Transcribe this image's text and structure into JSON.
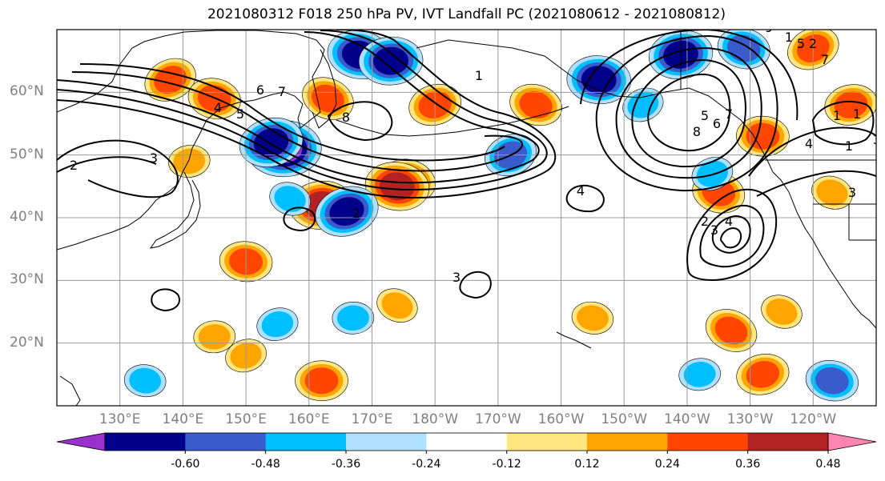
{
  "title": "2021080312 F018 250 hPa PV, IVT Landfall PC (2021080612 - 2021080812)",
  "map": {
    "projection": "cylindrical",
    "lon_range": [
      120,
      250
    ],
    "lat_range": [
      10,
      70
    ],
    "lat_ticks": [
      "20°N",
      "30°N",
      "40°N",
      "50°N",
      "60°N"
    ],
    "lon_ticks": [
      "130°E",
      "140°E",
      "150°E",
      "160°E",
      "170°E",
      "180°W",
      "170°W",
      "160°W",
      "150°W",
      "140°W",
      "130°W",
      "120°W"
    ],
    "grid": true
  },
  "colorbar": {
    "colors": [
      "#9932cc",
      "#00008b",
      "#3a5bcc",
      "#00bfff",
      "#b0e0ff",
      "#ffffff",
      "#ffe680",
      "#ffa500",
      "#ff4500",
      "#b22222",
      "#ff85b0"
    ],
    "tick_labels": [
      "-0.60",
      "-0.48",
      "-0.36",
      "-0.24",
      "-0.12",
      "0.12",
      "0.24",
      "0.36",
      "0.48",
      "0.60"
    ]
  },
  "contour_labels": [
    "2",
    "3",
    "4",
    "5",
    "6",
    "7",
    "8",
    "1",
    "2",
    "3",
    "4",
    "5",
    "6",
    "7",
    "8",
    "9",
    "1",
    "2",
    "3",
    "4",
    "1",
    "1",
    "5",
    "7",
    "4",
    "3",
    "2",
    "1",
    "3"
  ],
  "chart_data": {
    "type": "heatmap",
    "title": "2021080312 F018 250 hPa PV, IVT Landfall PC (2021080612 - 2021080812)",
    "xlabel": "",
    "ylabel": "",
    "x_range": [
      120,
      250
    ],
    "y_range": [
      10,
      70
    ],
    "color_levels": [
      -0.6,
      -0.48,
      -0.36,
      -0.24,
      -0.12,
      0.12,
      0.24,
      0.36,
      0.48,
      0.6
    ],
    "filled_features": [
      {
        "lon": 138,
        "lat": 62,
        "value": 0.36
      },
      {
        "lon": 145,
        "lat": 59,
        "value": 0.36
      },
      {
        "lon": 156,
        "lat": 51,
        "value": -0.6
      },
      {
        "lon": 154,
        "lat": 52,
        "value": -0.48
      },
      {
        "lon": 163,
        "lat": 59,
        "value": 0.36
      },
      {
        "lon": 168,
        "lat": 66,
        "value": -0.48
      },
      {
        "lon": 173,
        "lat": 65,
        "value": -0.48
      },
      {
        "lon": 180,
        "lat": 58,
        "value": 0.36
      },
      {
        "lon": 176,
        "lat": 46,
        "value": 0.36
      },
      {
        "lon": 174,
        "lat": 45,
        "value": 0.48
      },
      {
        "lon": 162,
        "lat": 42,
        "value": 0.48
      },
      {
        "lon": 166,
        "lat": 41,
        "value": -0.48
      },
      {
        "lon": 157,
        "lat": 43,
        "value": -0.24
      },
      {
        "lon": 150,
        "lat": 33,
        "value": 0.36
      },
      {
        "lon": 141,
        "lat": 49,
        "value": 0.24
      },
      {
        "lon": 192,
        "lat": 50,
        "value": -0.36
      },
      {
        "lon": 196,
        "lat": 58,
        "value": 0.36
      },
      {
        "lon": 206,
        "lat": 62,
        "value": -0.48
      },
      {
        "lon": 219,
        "lat": 66,
        "value": -0.48
      },
      {
        "lon": 213,
        "lat": 58,
        "value": -0.24
      },
      {
        "lon": 225,
        "lat": 44,
        "value": 0.36
      },
      {
        "lon": 232,
        "lat": 53,
        "value": 0.36
      },
      {
        "lon": 246,
        "lat": 58,
        "value": 0.36
      },
      {
        "lon": 240,
        "lat": 67,
        "value": 0.36
      },
      {
        "lon": 229,
        "lat": 67,
        "value": -0.36
      },
      {
        "lon": 162,
        "lat": 14,
        "value": 0.36
      },
      {
        "lon": 232,
        "lat": 15,
        "value": 0.36
      },
      {
        "lon": 227,
        "lat": 22,
        "value": 0.36
      },
      {
        "lon": 243,
        "lat": 14,
        "value": -0.36
      },
      {
        "lon": 167,
        "lat": 24,
        "value": -0.24
      },
      {
        "lon": 155,
        "lat": 23,
        "value": -0.24
      },
      {
        "lon": 174,
        "lat": 26,
        "value": 0.24
      },
      {
        "lon": 205,
        "lat": 24,
        "value": 0.24
      },
      {
        "lon": 145,
        "lat": 21,
        "value": 0.24
      },
      {
        "lon": 150,
        "lat": 18,
        "value": 0.24
      },
      {
        "lon": 235,
        "lat": 25,
        "value": 0.24
      },
      {
        "lon": 134,
        "lat": 14,
        "value": -0.24
      },
      {
        "lon": 222,
        "lat": 15,
        "value": -0.24
      },
      {
        "lon": 224,
        "lat": 47,
        "value": -0.24
      },
      {
        "lon": 243,
        "lat": 44,
        "value": 0.24
      }
    ]
  }
}
